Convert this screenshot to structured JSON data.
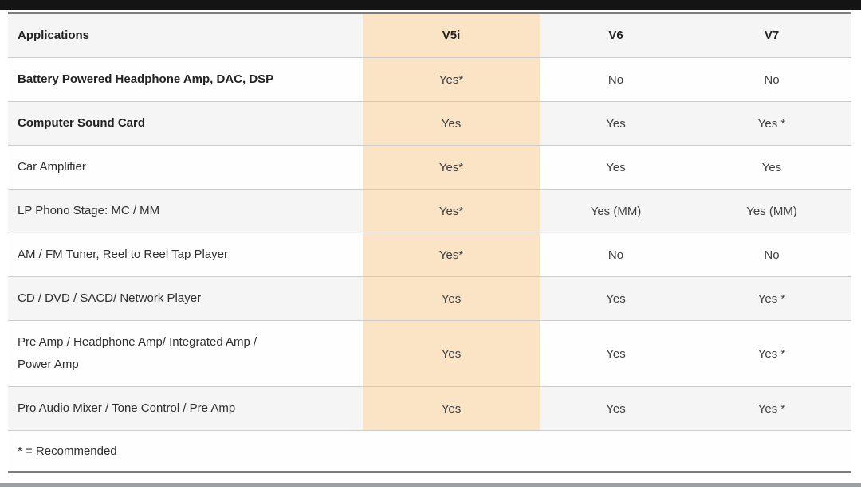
{
  "colors": {
    "background": "#ffffff",
    "top_bar": "#141414",
    "bottom_bar": "#9aa0a3",
    "highlight": "#fbe3c6",
    "row_alt": "#f5f5f6",
    "row_white": "#fefefe",
    "divider": "#cbcbcb",
    "table_border": "#7d7d7d",
    "header_text": "#222222",
    "value_text": "#404040"
  },
  "table": {
    "columns": [
      "Applications",
      "V5i",
      "V6",
      "V7"
    ],
    "highlighted_column": "V5i",
    "rows": [
      {
        "label": "Battery Powered Headphone Amp, DAC, DSP",
        "bold": true,
        "v5i": "Yes*",
        "v6": "No",
        "v7": "No"
      },
      {
        "label": "Computer Sound Card",
        "bold": true,
        "v5i": "Yes",
        "v6": "Yes",
        "v7": "Yes *"
      },
      {
        "label": "Car Amplifier",
        "bold": false,
        "v5i": "Yes*",
        "v6": "Yes",
        "v7": "Yes"
      },
      {
        "label": "LP Phono Stage: MC / MM",
        "bold": false,
        "v5i": "Yes*",
        "v6": "Yes (MM)",
        "v7": "Yes (MM)"
      },
      {
        "label": "AM / FM Tuner, Reel to Reel Tap Player",
        "bold": false,
        "v5i": "Yes*",
        "v6": "No",
        "v7": "No"
      },
      {
        "label": "CD / DVD / SACD/ Network Player",
        "bold": false,
        "v5i": "Yes",
        "v6": "Yes",
        "v7": "Yes *"
      },
      {
        "label": "Pre Amp / Headphone Amp/ Integrated Amp / Power Amp",
        "bold": false,
        "v5i": "Yes",
        "v6": "Yes",
        "v7": "Yes *"
      },
      {
        "label": "Pro Audio Mixer / Tone Control / Pre Amp",
        "bold": false,
        "v5i": "Yes",
        "v6": "Yes",
        "v7": "Yes *"
      }
    ],
    "footnote": "* = Recommended"
  }
}
